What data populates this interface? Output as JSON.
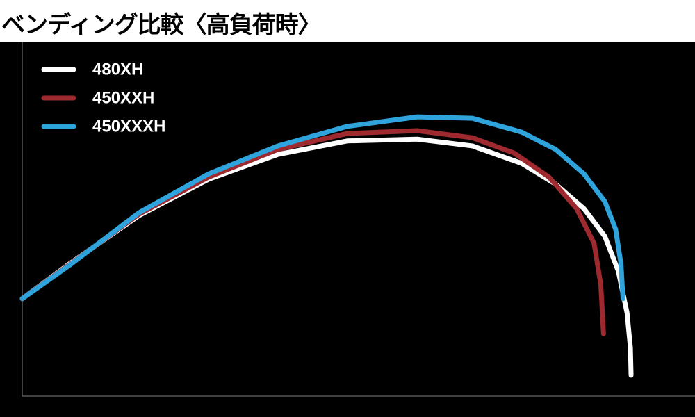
{
  "chart_data": {
    "type": "line",
    "title": "ベンディング比較〈高負荷時〉",
    "xlim": [
      0,
      100
    ],
    "ylim": [
      0,
      100
    ],
    "grid": false,
    "legend": "top-left",
    "series": [
      {
        "name": "480XH",
        "color": "#ffffff",
        "x": [
          0,
          7.0,
          17.4,
          27.7,
          38.0,
          48.3,
          58.7,
          66.9,
          74.2,
          79.3,
          83.5,
          86.6,
          88.6,
          89.9,
          90.4,
          90.5
        ],
        "values": [
          27.5,
          37.3,
          51.0,
          61.2,
          68.2,
          72.0,
          72.5,
          70.6,
          65.7,
          59.8,
          52.9,
          45.1,
          35.3,
          23.5,
          13.7,
          5.9
        ]
      },
      {
        "name": "450XXH",
        "color": "#9e2a2f",
        "x": [
          0,
          7.0,
          17.4,
          27.7,
          38.0,
          48.3,
          58.7,
          66.9,
          73.1,
          78.3,
          82.4,
          85.0,
          86.0,
          86.4
        ],
        "values": [
          27.5,
          37.1,
          51.4,
          61.8,
          69.6,
          74.1,
          74.9,
          72.9,
          68.6,
          61.8,
          52.9,
          43.1,
          31.4,
          17.6
        ]
      },
      {
        "name": "450XXXH",
        "color": "#2ea3dc",
        "x": [
          0,
          7.0,
          17.4,
          27.7,
          38.0,
          48.3,
          58.7,
          66.9,
          74.2,
          79.3,
          83.5,
          86.6,
          88.2,
          89.0,
          89.3
        ],
        "values": [
          27.5,
          36.9,
          51.8,
          62.7,
          70.6,
          76.1,
          78.8,
          78.4,
          74.5,
          69.6,
          62.7,
          54.9,
          47.1,
          37.3,
          27.5
        ]
      }
    ]
  }
}
